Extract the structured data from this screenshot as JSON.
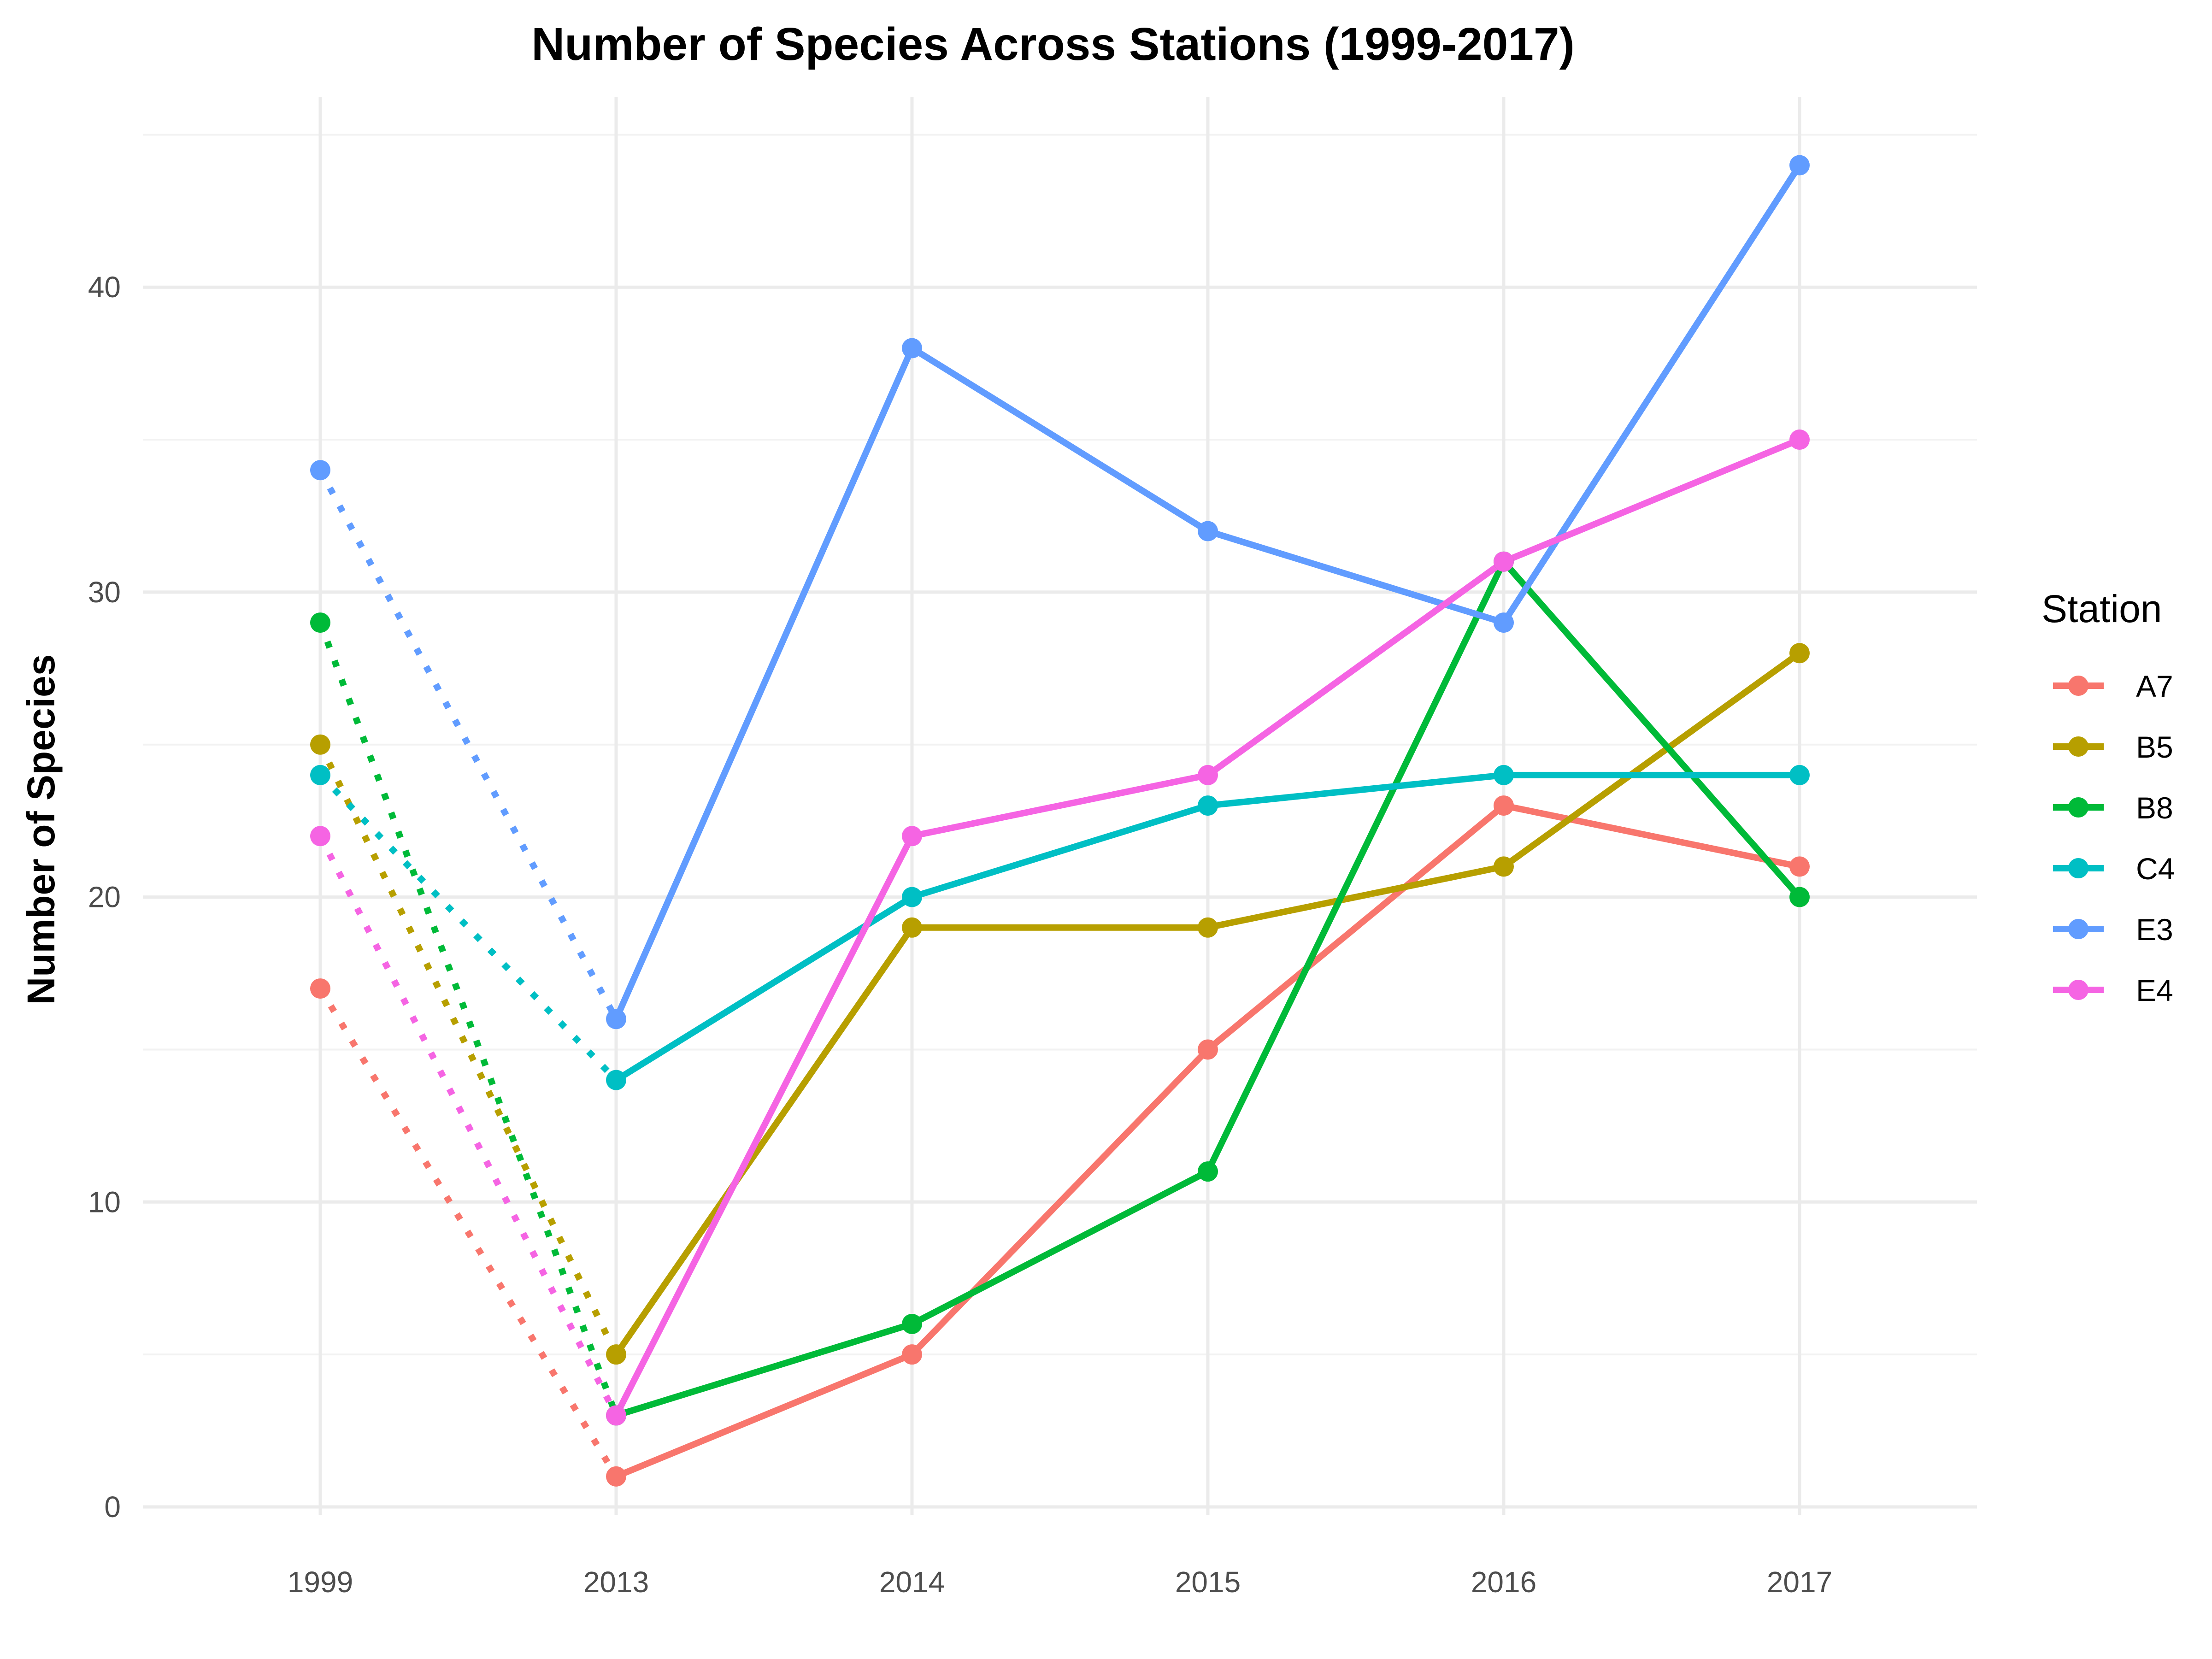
{
  "chart_data": {
    "type": "line",
    "title": "Number of Species Across Stations (1999-2017)",
    "xlabel": "",
    "ylabel": "Number of Species",
    "categories": [
      "1999",
      "2013",
      "2014",
      "2015",
      "2016",
      "2017"
    ],
    "ylim": [
      -0.5,
      45
    ],
    "yticks": [
      0,
      10,
      20,
      30,
      40
    ],
    "grid": true,
    "legend": {
      "title": "Station",
      "position": "right"
    },
    "dotted_segment": [
      "1999",
      "2013"
    ],
    "series": [
      {
        "name": "A7",
        "color": "#F8766D",
        "values": [
          17,
          1,
          5,
          15,
          23,
          21
        ]
      },
      {
        "name": "B5",
        "color": "#B79F00",
        "values": [
          25,
          5,
          19,
          19,
          21,
          28
        ]
      },
      {
        "name": "B8",
        "color": "#00BA38",
        "values": [
          29,
          3,
          6,
          11,
          31,
          20
        ]
      },
      {
        "name": "C4",
        "color": "#00BFC4",
        "values": [
          24,
          14,
          20,
          23,
          24,
          24
        ]
      },
      {
        "name": "E3",
        "color": "#619CFF",
        "values": [
          34,
          16,
          38,
          32,
          29,
          44
        ]
      },
      {
        "name": "E4",
        "color": "#F564E3",
        "values": [
          22,
          3,
          22,
          24,
          31,
          35
        ]
      }
    ]
  }
}
